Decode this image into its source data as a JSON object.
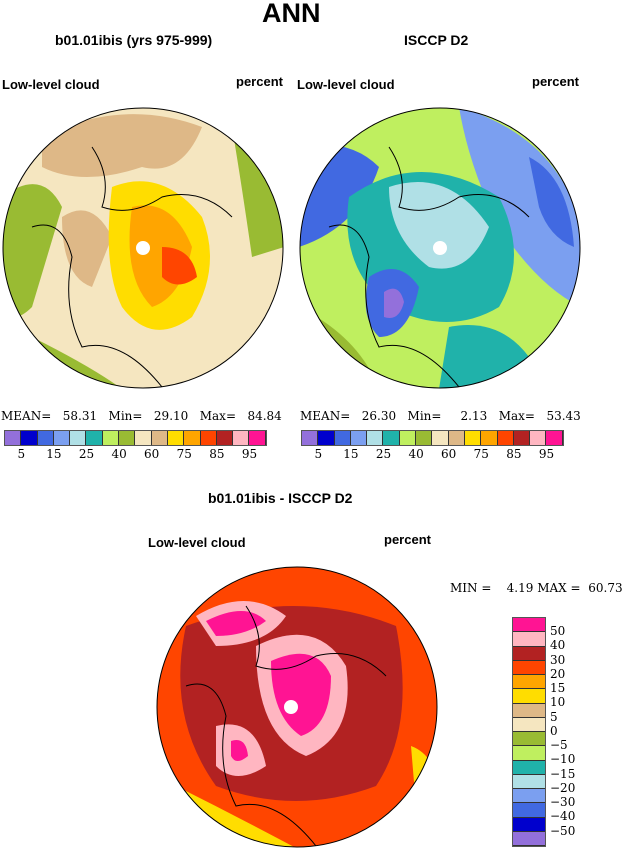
{
  "title": "ANN",
  "panels": [
    {
      "title": "b01.01ibis (yrs 975-999)",
      "variable": "Low-level cloud",
      "units": "percent",
      "stats": {
        "mean_label": "MEAN=",
        "mean": "58.31",
        "min_label": "Min=",
        "min": "29.10",
        "max_label": "Max=",
        "max": "84.84"
      }
    },
    {
      "title": "ISCCP D2",
      "variable": "Low-level cloud",
      "units": "percent",
      "stats": {
        "mean_label": "MEAN=",
        "mean": "26.30",
        "min_label": "Min=",
        "min": "2.13",
        "max_label": "Max=",
        "max": "53.43"
      }
    }
  ],
  "colorbar": {
    "labels": [
      "5",
      "15",
      "25",
      "40",
      "60",
      "75",
      "85",
      "95"
    ],
    "colors": [
      "#9370DB",
      "#0000CD",
      "#4169E1",
      "#7B9FF0",
      "#B0E0E6",
      "#20B2AA",
      "#BFEF5F",
      "#99BB33",
      "#F5E6C0",
      "#DEB887",
      "#FFDD00",
      "#FFA500",
      "#FF4500",
      "#B22222",
      "#FFB6C1",
      "#FF1493"
    ]
  },
  "diff": {
    "title": "b01.01ibis - ISCCP D2",
    "variable": "Low-level cloud",
    "units": "percent",
    "min_label": "MIN =",
    "min": "4.19",
    "max_label": "MAX =",
    "max": "60.73",
    "labels": [
      "50",
      "40",
      "30",
      "20",
      "15",
      "10",
      "5",
      "0",
      "−5",
      "−10",
      "−15",
      "−20",
      "−30",
      "−40",
      "−50"
    ]
  }
}
